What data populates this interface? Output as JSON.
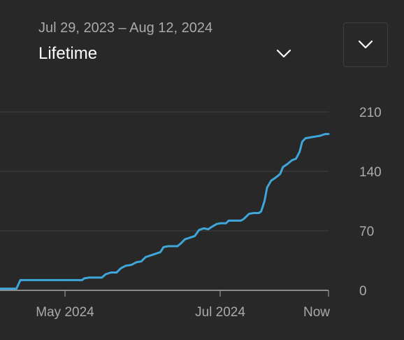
{
  "header": {
    "date_range": "Jul 29, 2023 – Aug 12, 2024",
    "period": "Lifetime"
  },
  "icons": {
    "period_chevron": "chevron-down-icon",
    "dropdown_chevron": "chevron-down-icon"
  },
  "colors": {
    "background": "#282828",
    "line": "#3ea6d8",
    "grid": "#3f3f3f",
    "baseline": "#aaaaaa",
    "label": "#aaaaaa"
  },
  "chart_data": {
    "type": "line",
    "x_ticks": [
      "May 2024",
      "Jul 2024",
      "Now"
    ],
    "y_ticks": [
      0,
      70,
      140,
      210
    ],
    "ylim": [
      0,
      210
    ],
    "grid": true,
    "series": [
      {
        "values": [
          [
            0.0,
            2
          ],
          [
            0.05,
            2
          ],
          [
            0.062,
            12
          ],
          [
            0.08,
            12
          ],
          [
            0.14,
            12
          ],
          [
            0.2,
            12
          ],
          [
            0.25,
            12
          ],
          [
            0.256,
            14
          ],
          [
            0.27,
            15
          ],
          [
            0.29,
            15
          ],
          [
            0.31,
            15
          ],
          [
            0.322,
            19
          ],
          [
            0.338,
            21
          ],
          [
            0.355,
            21
          ],
          [
            0.368,
            26
          ],
          [
            0.383,
            29
          ],
          [
            0.4,
            30
          ],
          [
            0.415,
            33
          ],
          [
            0.43,
            34
          ],
          [
            0.443,
            39
          ],
          [
            0.458,
            41
          ],
          [
            0.473,
            43
          ],
          [
            0.488,
            45
          ],
          [
            0.498,
            51
          ],
          [
            0.513,
            52
          ],
          [
            0.54,
            52
          ],
          [
            0.55,
            55
          ],
          [
            0.563,
            60
          ],
          [
            0.578,
            62
          ],
          [
            0.593,
            64
          ],
          [
            0.606,
            71
          ],
          [
            0.62,
            73
          ],
          [
            0.634,
            72
          ],
          [
            0.646,
            75
          ],
          [
            0.659,
            78
          ],
          [
            0.671,
            79
          ],
          [
            0.688,
            79
          ],
          [
            0.696,
            82
          ],
          [
            0.712,
            82
          ],
          [
            0.733,
            82
          ],
          [
            0.742,
            84
          ],
          [
            0.758,
            90
          ],
          [
            0.772,
            91
          ],
          [
            0.788,
            91
          ],
          [
            0.795,
            93
          ],
          [
            0.805,
            105
          ],
          [
            0.813,
            121
          ],
          [
            0.825,
            129
          ],
          [
            0.84,
            133
          ],
          [
            0.853,
            137
          ],
          [
            0.861,
            145
          ],
          [
            0.876,
            149
          ],
          [
            0.888,
            153
          ],
          [
            0.901,
            155
          ],
          [
            0.912,
            163
          ],
          [
            0.92,
            175
          ],
          [
            0.93,
            179
          ],
          [
            0.945,
            180
          ],
          [
            0.96,
            181
          ],
          [
            0.975,
            182
          ],
          [
            0.99,
            184
          ],
          [
            1.0,
            184
          ]
        ]
      }
    ]
  }
}
